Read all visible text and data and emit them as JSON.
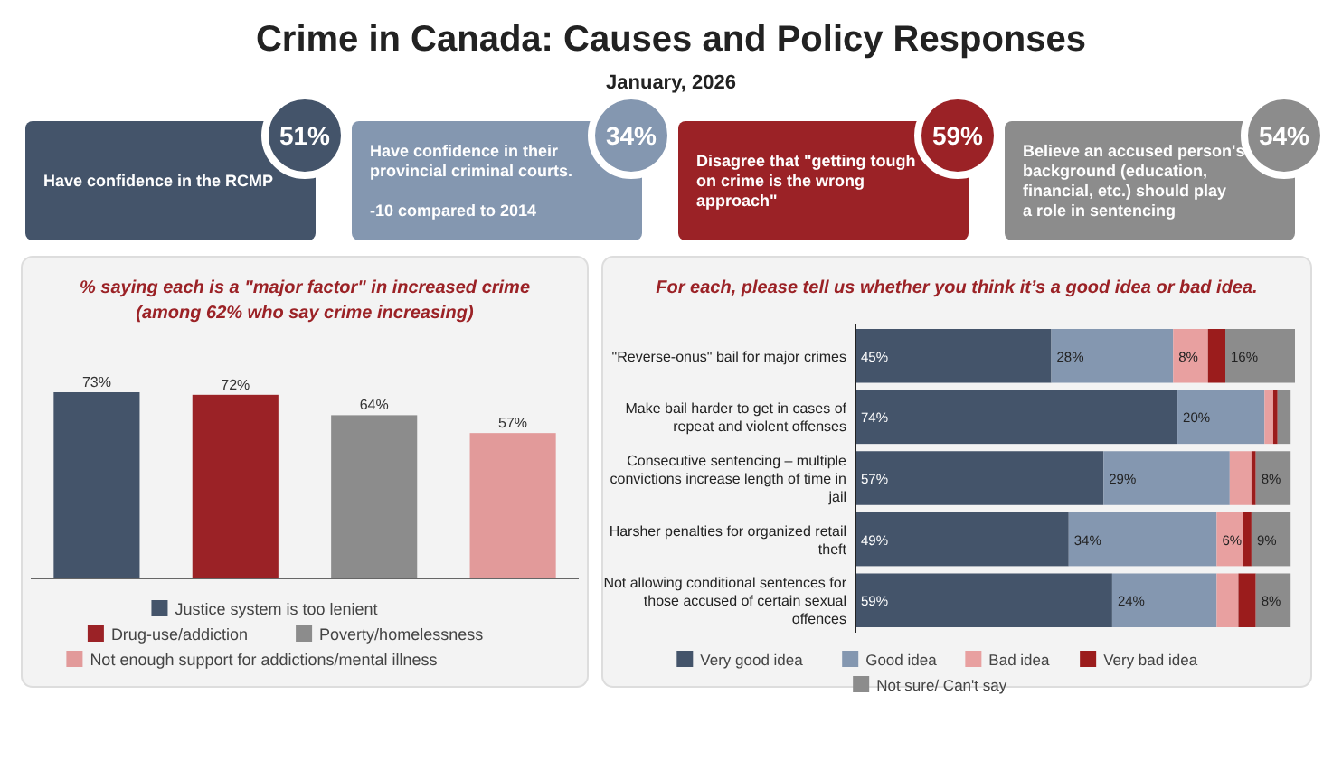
{
  "chart_data": [
    {
      "type": "other",
      "title": "Crime in Canada: Causes and Policy Responses",
      "subtitle": "January, 2026",
      "categories": [
        "Have confidence in the RCMP",
        "Have confidence in their provincial criminal courts.\n\n-10 compared to 2014",
        "Disagree that \"getting tough on crime is the wrong approach\"",
        "Believe an accused person's background (education, financial, etc.) should play a role in sentencing"
      ],
      "values": [
        51,
        34,
        59,
        54
      ],
      "value_labels": [
        "51%",
        "34%",
        "59%",
        "54%"
      ],
      "colors": [
        "#44546a",
        "#8497b0",
        "#9b2226",
        "#8c8c8c"
      ]
    },
    {
      "type": "bar",
      "title": "% saying each is a \"major factor\" in increased crime\n(among 62% who say crime increasing)",
      "categories": [
        null,
        null,
        null,
        null
      ],
      "stacked": true,
      "legend": "bottom",
      "tick_labels": false,
      "series": [
        {
          "name": "Justice system is too lenient",
          "color": "#44546a",
          "values": [
            73,
            null,
            null,
            null
          ],
          "value_labels": [
            "73%",
            null,
            null,
            null
          ]
        },
        {
          "name": "Drug-use/addiction",
          "color": "#9b2226",
          "values": [
            null,
            72,
            null,
            null
          ],
          "value_labels": [
            null,
            "72%",
            null,
            null
          ]
        },
        {
          "name": "Poverty/homelessness",
          "color": "#8c8c8c",
          "values": [
            null,
            null,
            64,
            null
          ],
          "value_labels": [
            null,
            null,
            "64%",
            null
          ]
        },
        {
          "name": "Not enough support for addictions/mental illness",
          "color": "#e29a9a",
          "values": [
            null,
            null,
            null,
            57
          ],
          "value_labels": [
            null,
            null,
            null,
            "57%"
          ]
        }
      ]
    },
    {
      "type": "bar",
      "orientation": "horizontal",
      "stacked": true,
      "title": "For each, please tell us whether you think it’s a good idea or bad idea.",
      "categories": [
        "\"Reverse-onus\" bail for major crimes",
        "Make bail harder to get in cases of repeat and violent offenses",
        "Consecutive sentencing – multiple convictions increase length of time in jail",
        "Harsher penalties for organized retail theft",
        "Not allowing conditional sentences for those accused of certain sexual offences"
      ],
      "legend": "bottom",
      "tick_labels": "y",
      "series": [
        {
          "name": "Very good idea",
          "color": "#44546a",
          "values": [
            45,
            74,
            57,
            49,
            59
          ],
          "value_labels": [
            "45%",
            "74%",
            "57%",
            "49%",
            "59%"
          ]
        },
        {
          "name": "Good idea",
          "color": "#8497b0",
          "values": [
            28,
            20,
            29,
            34,
            24
          ],
          "value_labels": [
            "28%",
            "20%",
            "29%",
            "34%",
            "24%"
          ]
        },
        {
          "name": "Bad idea",
          "color": "#e8a0a0",
          "values": [
            8,
            2,
            5,
            6,
            5
          ],
          "value_labels": [
            "8%",
            null,
            null,
            "6%",
            null
          ]
        },
        {
          "name": "Very bad idea",
          "color": "#9b1c1c",
          "values": [
            4,
            1,
            1,
            2,
            4
          ],
          "value_labels": [
            null,
            null,
            null,
            null,
            null
          ]
        },
        {
          "name": "Not sure/ Can't say",
          "color": "#8c8c8c",
          "values": [
            16,
            3,
            8,
            9,
            8
          ],
          "value_labels": [
            "16%",
            null,
            "8%",
            "9%",
            "8%"
          ]
        }
      ]
    }
  ]
}
